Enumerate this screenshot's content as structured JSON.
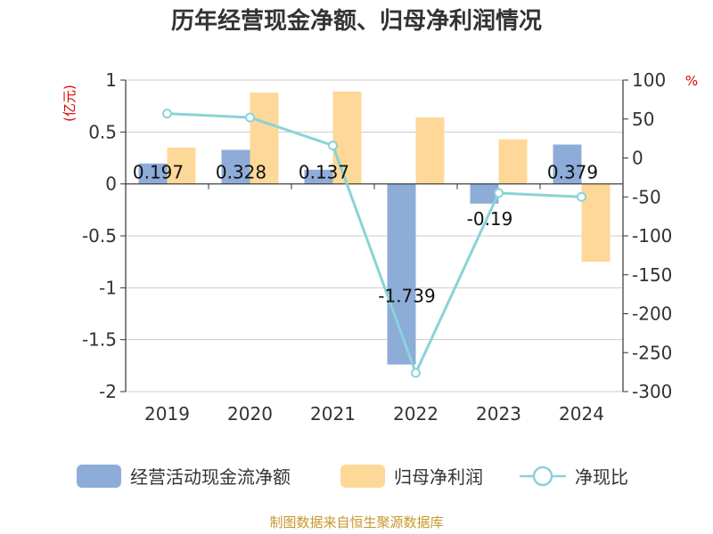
{
  "chart_data": {
    "type": "bar",
    "title": "历年经营现金净额、归母净利润情况",
    "left_axis_unit": "(亿元)",
    "right_axis_unit": "%",
    "categories": [
      "2019",
      "2020",
      "2021",
      "2022",
      "2023",
      "2024"
    ],
    "left_ylim": [
      -2,
      1
    ],
    "left_ticks": [
      "1",
      "0.5",
      "0",
      "-0.5",
      "-1",
      "-1.5",
      "-2"
    ],
    "right_ylim": [
      -300,
      100
    ],
    "right_ticks": [
      "100",
      "50",
      "0",
      "-50",
      "-100",
      "-150",
      "-200",
      "-250",
      "-300"
    ],
    "series": [
      {
        "name": "经营活动现金流净额",
        "axis": "left",
        "kind": "bar",
        "color": "#8eacd8",
        "values": [
          0.197,
          0.328,
          0.137,
          -1.739,
          -0.19,
          0.379
        ],
        "labels": [
          "0.197",
          "0.328",
          "0.137",
          "-1.739",
          "-0.19",
          "0.379"
        ]
      },
      {
        "name": "归母净利润",
        "axis": "left",
        "kind": "bar",
        "color": "#fed898",
        "values": [
          0.35,
          0.88,
          0.89,
          0.64,
          0.43,
          -0.75
        ]
      },
      {
        "name": "净现比",
        "axis": "right",
        "kind": "line",
        "color": "#89d3d8",
        "values": [
          57,
          52,
          16,
          -276,
          -45,
          -50
        ]
      }
    ],
    "grid": true,
    "legend_position": "bottom",
    "source": "制图数据来自恒生聚源数据库"
  }
}
